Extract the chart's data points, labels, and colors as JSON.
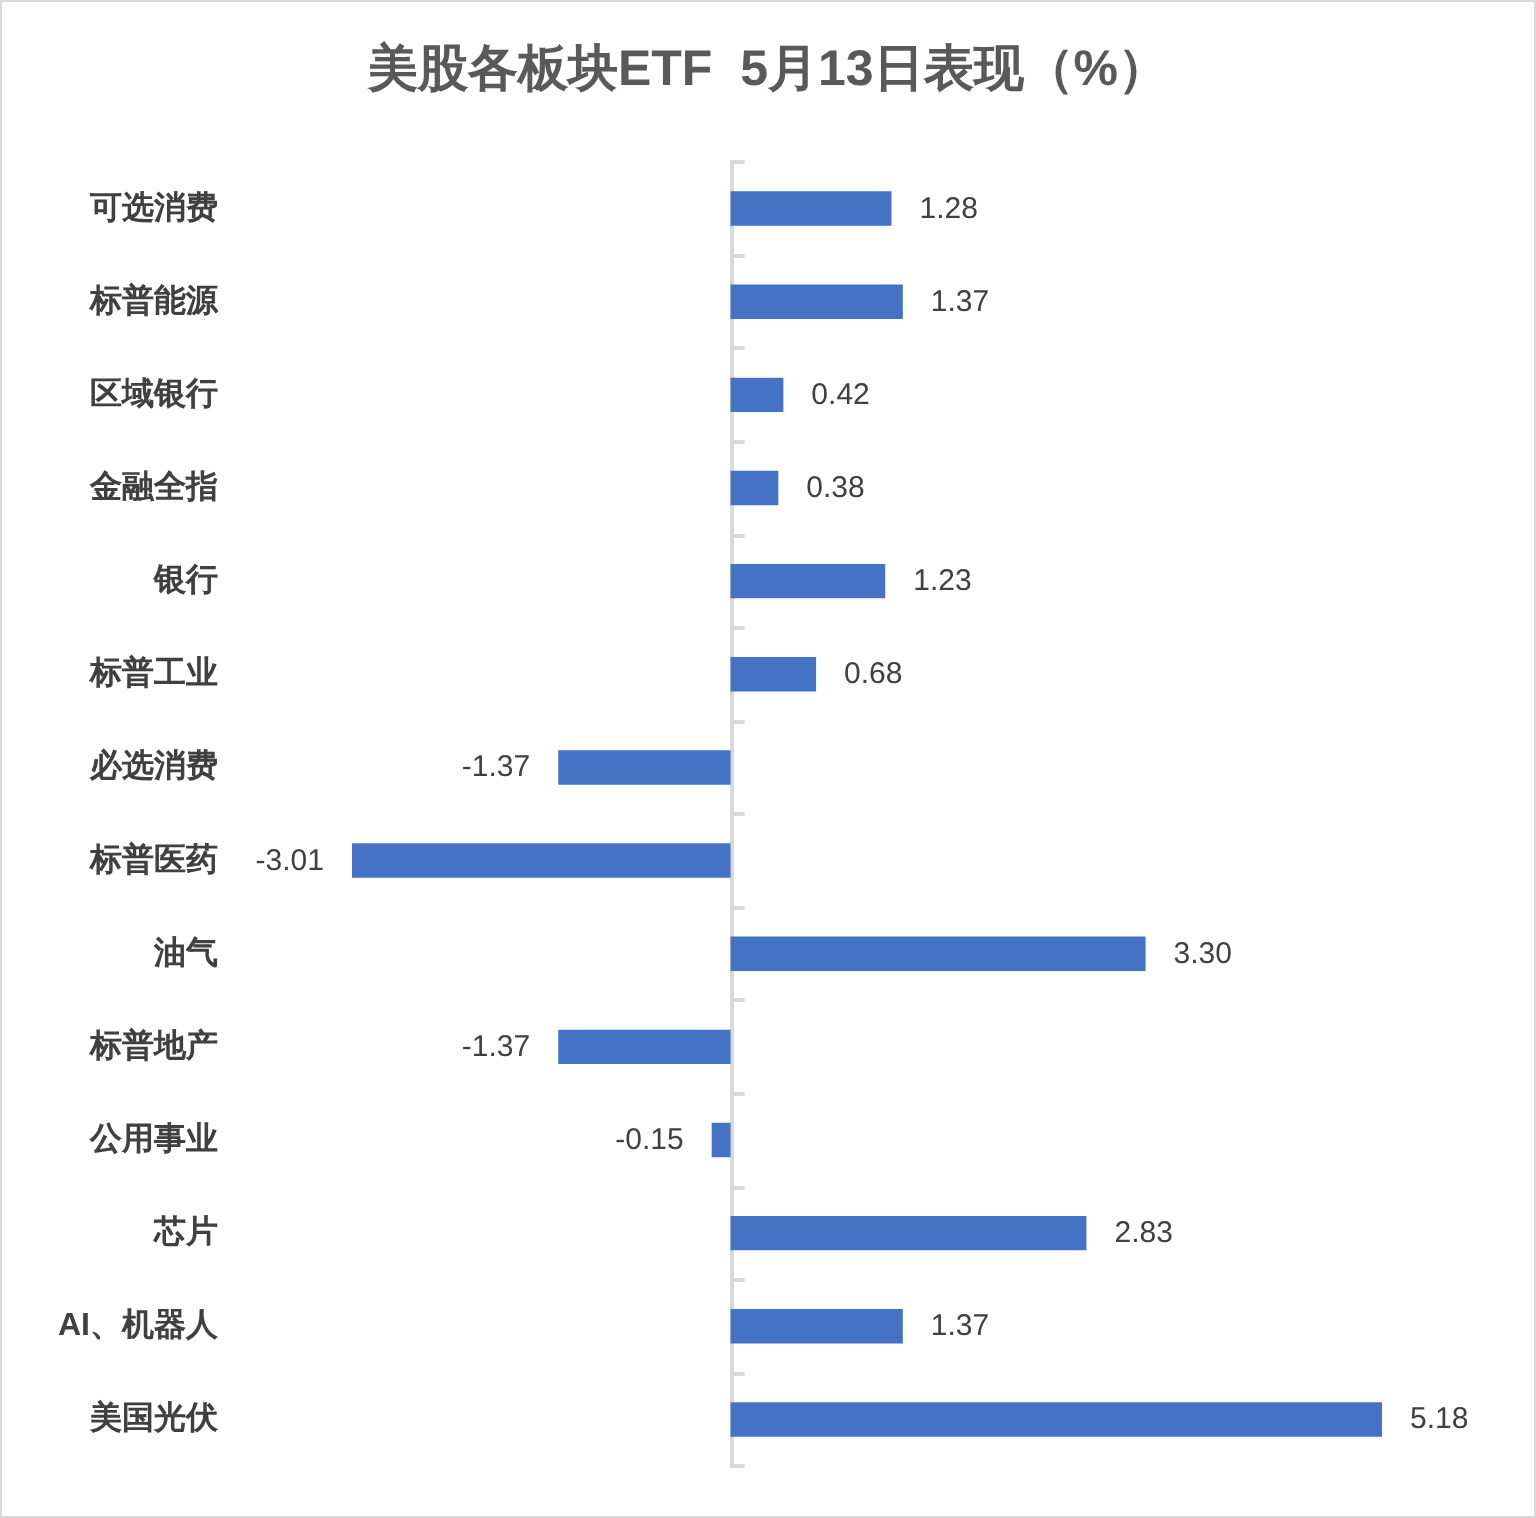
{
  "chart_data": {
    "type": "bar",
    "orientation": "horizontal",
    "title": "美股各板块ETF  5月13日表现（%）",
    "categories": [
      "可选消费",
      "标普能源",
      "区域银行",
      "金融全指",
      "银行",
      "标普工业",
      "必选消费",
      "标普医药",
      "油气",
      "标普地产",
      "公用事业",
      "芯片",
      "AI、机器人",
      "美国光伏"
    ],
    "values": [
      1.28,
      1.37,
      0.42,
      0.38,
      1.23,
      0.68,
      -1.37,
      -3.01,
      3.3,
      -1.37,
      -0.15,
      2.83,
      1.37,
      5.18
    ],
    "value_labels": [
      "1.28",
      "1.37",
      "0.42",
      "0.38",
      "1.23",
      "0.68",
      "-1.37",
      "-3.01",
      "3.30",
      "-1.37",
      "-0.15",
      "2.83",
      "1.37",
      "5.18"
    ],
    "color": "#4472c4",
    "tick_labels": "y"
  }
}
